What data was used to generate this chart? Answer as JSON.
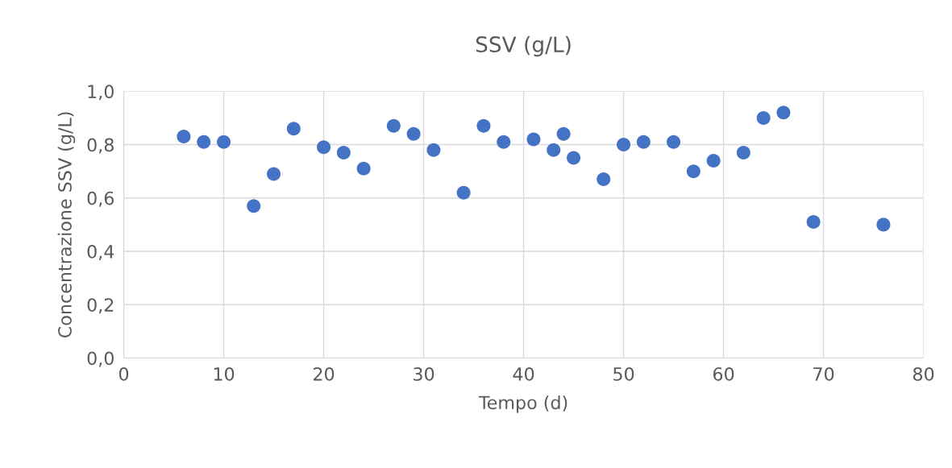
{
  "chart_data": {
    "type": "scatter",
    "title": "SSV (g/L)",
    "xlabel": "Tempo (d)",
    "ylabel": "Concentrazione SSV (g/L)",
    "x": [
      6,
      8,
      10,
      13,
      15,
      17,
      20,
      22,
      24,
      27,
      29,
      31,
      34,
      36,
      38,
      41,
      43,
      44,
      45,
      48,
      50,
      52,
      55,
      57,
      59,
      62,
      64,
      66,
      69,
      76
    ],
    "values": [
      0.83,
      0.81,
      0.81,
      0.57,
      0.69,
      0.86,
      0.79,
      0.77,
      0.71,
      0.87,
      0.84,
      0.78,
      0.62,
      0.87,
      0.81,
      0.82,
      0.78,
      0.84,
      0.75,
      0.67,
      0.8,
      0.81,
      0.81,
      0.7,
      0.74,
      0.77,
      0.9,
      0.92,
      0.51,
      0.5
    ],
    "color": "#4472c4",
    "marker": "circle",
    "grid": true,
    "xlim": [
      0,
      80
    ],
    "xticks": [
      0,
      10,
      20,
      30,
      40,
      50,
      60,
      70,
      80
    ],
    "ylim": [
      0,
      1.0
    ],
    "yticks": [
      {
        "value": 0,
        "label": "0,0"
      },
      {
        "value": 0.2,
        "label": "0,2"
      },
      {
        "value": 0.4,
        "label": "0,4"
      },
      {
        "value": 0.6,
        "label": "0,6"
      },
      {
        "value": 0.8,
        "label": "0,8"
      },
      {
        "value": 1.0,
        "label": "1,0"
      }
    ]
  }
}
